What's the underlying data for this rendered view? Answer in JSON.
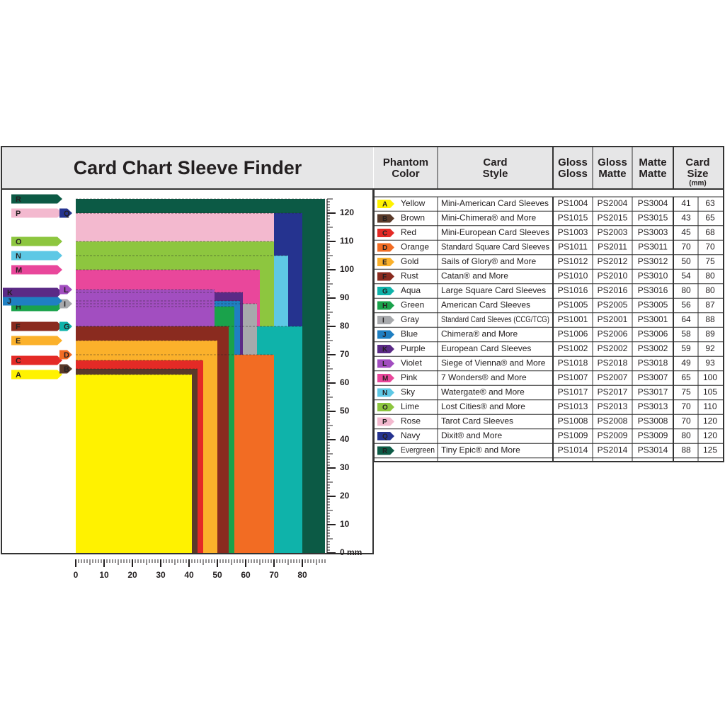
{
  "title": "Card Chart Sleeve Finder",
  "table": {
    "headers": [
      [
        "Phantom",
        "Color"
      ],
      [
        "Card",
        "Style"
      ],
      [
        "Gloss",
        "Gloss"
      ],
      [
        "Gloss",
        "Matte"
      ],
      [
        "Matte",
        "Matte"
      ],
      [
        "Card",
        "Size",
        "(mm)"
      ]
    ],
    "rows": [
      [
        "Yellow",
        "Mini-American Card Sleeves",
        "PS1004",
        "PS2004",
        "PS3004"
      ],
      [
        "Brown",
        "Mini-Chimera® and More",
        "PS1015",
        "PS2015",
        "PS3015"
      ],
      [
        "Red",
        "Mini-European Card Sleeves",
        "PS1003",
        "PS2003",
        "PS3003"
      ],
      [
        "Orange",
        "Standard Square Card Sleeves",
        "PS1011",
        "PS2011",
        "PS3011"
      ],
      [
        "Gold",
        "Sails of Glory® and More",
        "PS1012",
        "PS2012",
        "PS3012"
      ],
      [
        "Rust",
        "Catan® and More",
        "PS1010",
        "PS2010",
        "PS3010"
      ],
      [
        "Aqua",
        "Large Square Card Sleeves",
        "PS1016",
        "PS2016",
        "PS3016"
      ],
      [
        "Green",
        "American Card Sleeves",
        "PS1005",
        "PS2005",
        "PS3005"
      ],
      [
        "Gray",
        "Standard Card Sleeves (CCG/TCG)",
        "PS1001",
        "PS2001",
        "PS3001"
      ],
      [
        "Blue",
        "Chimera® and More",
        "PS1006",
        "PS2006",
        "PS3006"
      ],
      [
        "Purple",
        "European Card Sleeves",
        "PS1002",
        "PS2002",
        "PS3002"
      ],
      [
        "Violet",
        "Siege of Vienna® and More",
        "PS1018",
        "PS2018",
        "PS3018"
      ],
      [
        "Pink",
        "7 Wonders® and More",
        "PS1007",
        "PS2007",
        "PS3007"
      ],
      [
        "Sky",
        "Watergate® and More",
        "PS1017",
        "PS2017",
        "PS3017"
      ],
      [
        "Lime",
        "Lost Cities® and More",
        "PS1013",
        "PS2013",
        "PS3013"
      ],
      [
        "Rose",
        "Tarot Card Sleeves",
        "PS1008",
        "PS2008",
        "PS3008"
      ],
      [
        "Navy",
        "Dixit® and More",
        "PS1009",
        "PS2009",
        "PS3009"
      ],
      [
        "Evergreen",
        "Tiny Epic® and More",
        "PS1014",
        "PS2014",
        "PS3014"
      ]
    ]
  },
  "chart_data": {
    "type": "sleeve-rects",
    "xlim": [
      0,
      88
    ],
    "ylim": [
      0,
      125
    ],
    "xticks": [
      0,
      10,
      20,
      30,
      40,
      50,
      60,
      70,
      80
    ],
    "yticks": [
      {
        "value": 0,
        "label": "0 mm"
      },
      10,
      20,
      30,
      40,
      50,
      60,
      70,
      80,
      90,
      100,
      110,
      120
    ],
    "series": [
      {
        "name": "A",
        "color": "#fff200",
        "values": [
          41,
          63
        ]
      },
      {
        "name": "B",
        "color": "#5a3a2a",
        "values": [
          43,
          65
        ]
      },
      {
        "name": "C",
        "color": "#e42a26",
        "values": [
          45,
          68
        ]
      },
      {
        "name": "D",
        "color": "#f26c23",
        "values": [
          70,
          70
        ]
      },
      {
        "name": "E",
        "color": "#fbb12b",
        "values": [
          50,
          75
        ]
      },
      {
        "name": "F",
        "color": "#8a2b1f",
        "values": [
          54,
          80
        ]
      },
      {
        "name": "G",
        "color": "#0fb3aa",
        "values": [
          80,
          80
        ]
      },
      {
        "name": "H",
        "color": "#1aa24b",
        "values": [
          56,
          87
        ]
      },
      {
        "name": "I",
        "color": "#a7a9ac",
        "values": [
          64,
          88
        ]
      },
      {
        "name": "J",
        "color": "#1f7fc2",
        "values": [
          58,
          89
        ]
      },
      {
        "name": "K",
        "color": "#5b2a86",
        "values": [
          59,
          92
        ]
      },
      {
        "name": "L",
        "color": "#a24ec0",
        "values": [
          49,
          93
        ]
      },
      {
        "name": "M",
        "color": "#e9479b",
        "values": [
          65,
          100
        ]
      },
      {
        "name": "N",
        "color": "#5ec8e5",
        "values": [
          75,
          105
        ]
      },
      {
        "name": "O",
        "color": "#8dc63f",
        "values": [
          70,
          110
        ]
      },
      {
        "name": "P",
        "color": "#f3b9cf",
        "values": [
          70,
          120
        ]
      },
      {
        "name": "Q",
        "color": "#25338f",
        "values": [
          80,
          120
        ]
      },
      {
        "name": "R",
        "color": "#0c5a45",
        "values": [
          88,
          125
        ]
      }
    ]
  }
}
